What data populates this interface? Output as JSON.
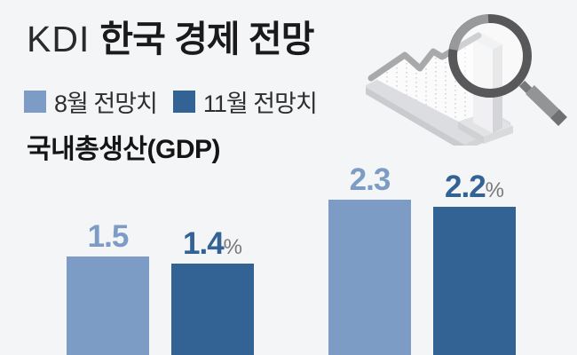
{
  "colors": {
    "background": "#f4f5f6",
    "title_text": "#1a1a1b",
    "percent": "#77787c",
    "legend_text": "#2e2e30"
  },
  "header": {
    "title_prefix": "KDI",
    "title_main": "한국 경제 전망"
  },
  "legend": {
    "items": [
      {
        "label": "8월 전망치"
      },
      {
        "label": "11월 전망치"
      }
    ]
  },
  "section_title": "국내총생산(GDP)",
  "chart_data": {
    "type": "bar",
    "title": "KDI 한국 경제 전망",
    "subtitle": "국내총생산(GDP)",
    "unit": "%",
    "grid": false,
    "legend_position": "top-left",
    "group_count": 2,
    "series": [
      {
        "name": "8월 전망치",
        "color": "#7d9cc5",
        "values": [
          1.5,
          2.3
        ]
      },
      {
        "name": "11월 전망치",
        "color": "#336294",
        "values": [
          1.4,
          2.2
        ]
      }
    ],
    "bar_labels": [
      {
        "text": "1.5",
        "suffix": ""
      },
      {
        "text": "1.4",
        "suffix": "%"
      },
      {
        "text": "2.3",
        "suffix": ""
      },
      {
        "text": "2.2",
        "suffix": "%"
      }
    ]
  },
  "illustration": {
    "alt": "rising isometric trend chart inspected by a magnifying glass"
  }
}
